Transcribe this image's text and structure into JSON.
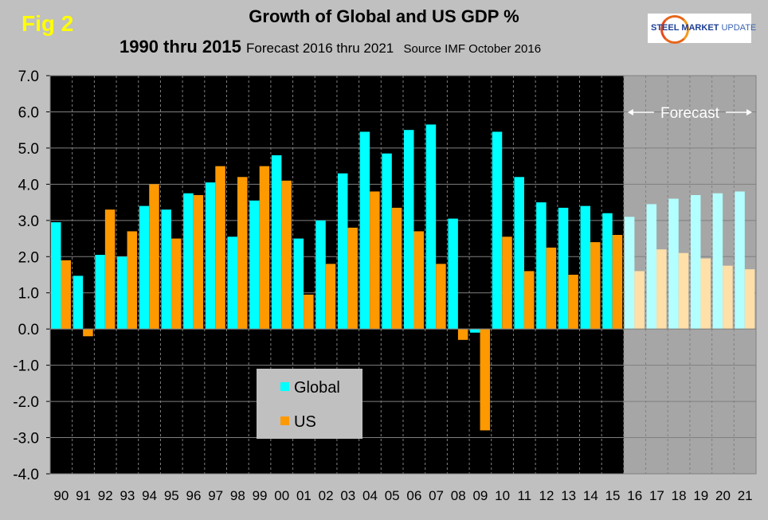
{
  "fig_label": "Fig 2",
  "logo_text": {
    "a": "STEEL",
    "b": "MARKET",
    "c": "UPDATE"
  },
  "chart_data": {
    "type": "bar",
    "title": "Growth of Global and US GDP %",
    "subtitle_bold": "1990 thru 2015",
    "subtitle_forecast": "Forecast 2016 thru 2021",
    "subtitle_source": "Source IMF October 2016",
    "annotation": "Forecast",
    "categories": [
      "90",
      "91",
      "92",
      "93",
      "94",
      "95",
      "96",
      "97",
      "98",
      "99",
      "00",
      "01",
      "02",
      "03",
      "04",
      "05",
      "06",
      "07",
      "08",
      "09",
      "10",
      "11",
      "12",
      "13",
      "14",
      "15",
      "16",
      "17",
      "18",
      "19",
      "20",
      "21"
    ],
    "forecast_start_index": 26,
    "ylim": [
      -4,
      7
    ],
    "yticks": [
      "7.0",
      "6.0",
      "5.0",
      "4.0",
      "3.0",
      "2.0",
      "1.0",
      "0.0",
      "-1.0",
      "-2.0",
      "-3.0",
      "-4.0"
    ],
    "grid": true,
    "legend_position": "bottom-center",
    "series": [
      {
        "name": "Global",
        "color": "#00ffff",
        "forecast_color": "#b3ffff",
        "values": [
          2.95,
          1.47,
          2.05,
          2.0,
          3.4,
          3.3,
          3.75,
          4.05,
          2.55,
          3.55,
          4.8,
          2.5,
          3.0,
          4.3,
          5.45,
          4.85,
          5.5,
          5.65,
          3.05,
          -0.1,
          5.45,
          4.2,
          3.5,
          3.35,
          3.4,
          3.2,
          3.1,
          3.45,
          3.6,
          3.7,
          3.75,
          3.8
        ]
      },
      {
        "name": "US",
        "color": "#ff9900",
        "forecast_color": "#ffe0a8",
        "values": [
          1.9,
          -0.2,
          3.3,
          2.7,
          4.0,
          2.5,
          3.7,
          4.5,
          4.2,
          4.5,
          4.1,
          0.95,
          1.8,
          2.8,
          3.8,
          3.35,
          2.7,
          1.8,
          -0.3,
          -2.8,
          2.55,
          1.6,
          2.25,
          1.5,
          2.4,
          2.6,
          1.6,
          2.2,
          2.1,
          1.95,
          1.75,
          1.65
        ]
      }
    ],
    "plot_bg": "#000000",
    "forecast_bg": "#a6a6a6"
  }
}
